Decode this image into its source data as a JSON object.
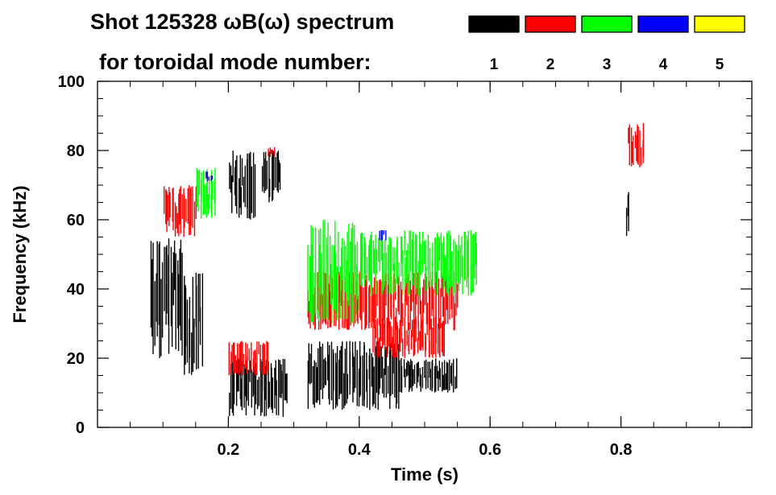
{
  "chart_data": {
    "type": "heatmap",
    "title_line1": "Shot 125328 ωB(ω) spectrum",
    "title_line2": "for toroidal mode number:",
    "xlabel": "Time (s)",
    "ylabel": "Frequency (kHz)",
    "xlim": [
      0.0,
      1.0
    ],
    "ylim": [
      0,
      100
    ],
    "xticks": [
      {
        "value": 0.2,
        "label": "0.2"
      },
      {
        "value": 0.4,
        "label": "0.4"
      },
      {
        "value": 0.6,
        "label": "0.6"
      },
      {
        "value": 0.8,
        "label": "0.8"
      }
    ],
    "yticks": [
      {
        "value": 0,
        "label": "0"
      },
      {
        "value": 20,
        "label": "20"
      },
      {
        "value": 40,
        "label": "40"
      },
      {
        "value": 60,
        "label": "60"
      },
      {
        "value": 80,
        "label": "80"
      },
      {
        "value": 100,
        "label": "100"
      }
    ],
    "legend": [
      {
        "mode": "1",
        "color": "#000000"
      },
      {
        "mode": "2",
        "color": "#ff0000"
      },
      {
        "mode": "3",
        "color": "#00ff00"
      },
      {
        "mode": "4",
        "color": "#0000ff"
      },
      {
        "mode": "5",
        "color": "#ffff00"
      }
    ],
    "regions": [
      {
        "mode": 1,
        "t": [
          0.08,
          0.13
        ],
        "f": [
          20,
          55
        ]
      },
      {
        "mode": 1,
        "t": [
          0.13,
          0.16
        ],
        "f": [
          15,
          45
        ]
      },
      {
        "mode": 1,
        "t": [
          0.2,
          0.24
        ],
        "f": [
          60,
          80
        ]
      },
      {
        "mode": 1,
        "t": [
          0.2,
          0.29
        ],
        "f": [
          3,
          20
        ]
      },
      {
        "mode": 1,
        "t": [
          0.25,
          0.28
        ],
        "f": [
          65,
          80
        ]
      },
      {
        "mode": 1,
        "t": [
          0.32,
          0.46
        ],
        "f": [
          5,
          25
        ]
      },
      {
        "mode": 1,
        "t": [
          0.46,
          0.55
        ],
        "f": [
          10,
          20
        ]
      },
      {
        "mode": 1,
        "t": [
          0.807,
          0.812
        ],
        "f": [
          55,
          70
        ]
      },
      {
        "mode": 2,
        "t": [
          0.1,
          0.15
        ],
        "f": [
          55,
          70
        ]
      },
      {
        "mode": 2,
        "t": [
          0.2,
          0.26
        ],
        "f": [
          15,
          25
        ]
      },
      {
        "mode": 2,
        "t": [
          0.26,
          0.27
        ],
        "f": [
          78,
          81
        ]
      },
      {
        "mode": 2,
        "t": [
          0.32,
          0.55
        ],
        "f": [
          28,
          45
        ]
      },
      {
        "mode": 2,
        "t": [
          0.42,
          0.53
        ],
        "f": [
          20,
          32
        ]
      },
      {
        "mode": 2,
        "t": [
          0.81,
          0.835
        ],
        "f": [
          75,
          88
        ]
      },
      {
        "mode": 3,
        "t": [
          0.15,
          0.18
        ],
        "f": [
          60,
          75
        ]
      },
      {
        "mode": 3,
        "t": [
          0.32,
          0.4
        ],
        "f": [
          30,
          60
        ]
      },
      {
        "mode": 3,
        "t": [
          0.4,
          0.58
        ],
        "f": [
          38,
          57
        ]
      },
      {
        "mode": 4,
        "t": [
          0.165,
          0.175
        ],
        "f": [
          71,
          74
        ]
      },
      {
        "mode": 4,
        "t": [
          0.43,
          0.44
        ],
        "f": [
          54,
          57
        ]
      }
    ]
  }
}
